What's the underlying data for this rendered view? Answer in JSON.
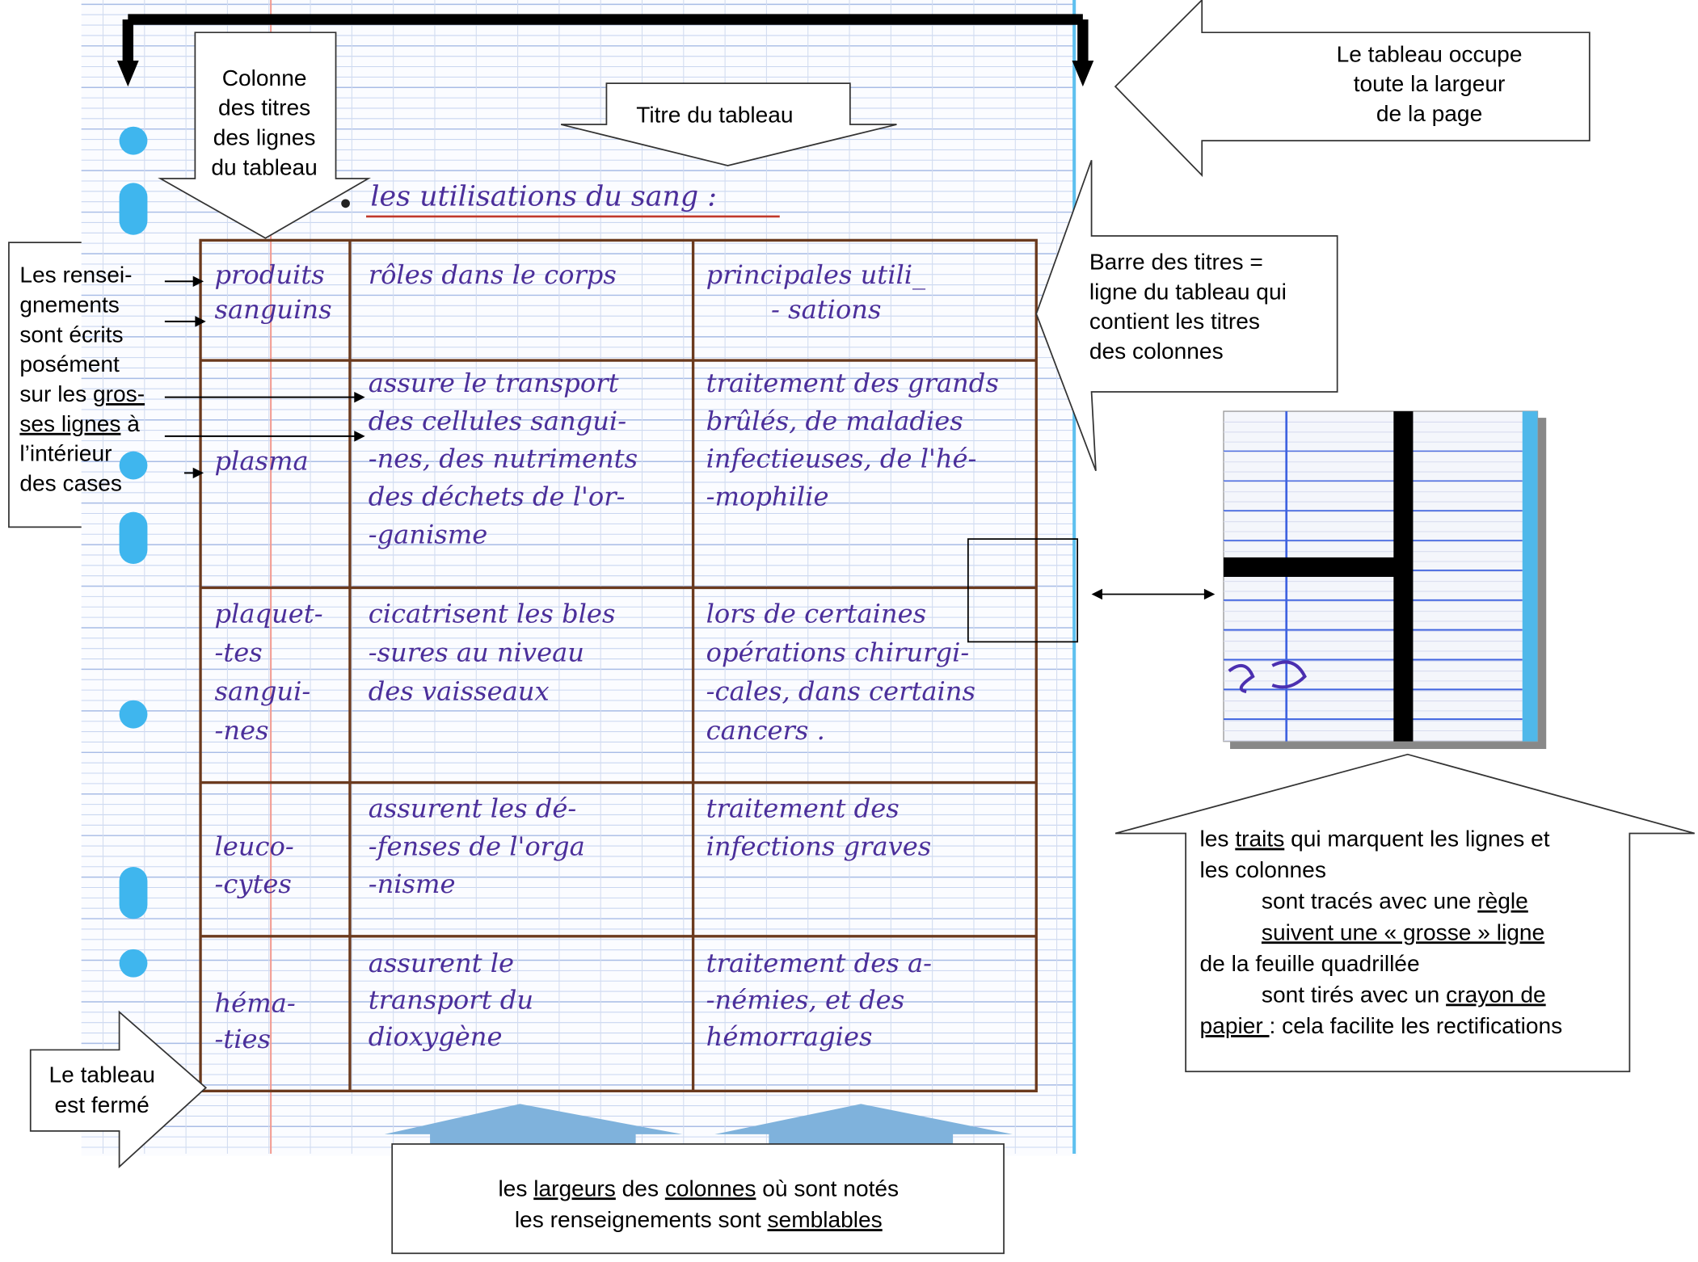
{
  "table": {
    "title": "les utilisations du sang :",
    "header": [
      [
        "produits",
        "sanguins"
      ],
      [
        "rôles dans le corps"
      ],
      [
        "principales utili_",
        "- sations"
      ]
    ],
    "rows": [
      [
        [
          "plasma"
        ],
        [
          "assure le transport",
          "des cellules sangui-",
          "-nes, des nutriments",
          "des déchets de l'or-",
          "-ganisme"
        ],
        [
          "traitement des grands",
          "brûlés, de maladies",
          "infectieuses, de l'hé-",
          "-mophilie"
        ]
      ],
      [
        [
          "plaquet-",
          "-tes",
          "sangui-",
          "-nes"
        ],
        [
          "cicatrisent les bles",
          "-sures au niveau",
          "des vaisseaux"
        ],
        [
          "lors de certaines",
          "opérations chirurgi-",
          "-cales, dans certains",
          "cancers ."
        ]
      ],
      [
        [
          "leuco-",
          "-cytes"
        ],
        [
          "assurent les dé-",
          "-fenses de l'orga",
          "-nisme"
        ],
        [
          "traitement des",
          "infections graves"
        ]
      ],
      [
        [
          "héma-",
          "-ties"
        ],
        [
          "assurent le",
          "transport du",
          "dioxygène"
        ],
        [
          "traitement des a-",
          "-némies, et des",
          "hémorragies"
        ]
      ]
    ]
  },
  "annotations": {
    "row_titles_column": [
      "Colonne",
      "des titres",
      "des lignes",
      "du tableau"
    ],
    "table_title": "Titre du tableau",
    "full_width": [
      "Le tableau occupe",
      "toute la largeur",
      "de la page"
    ],
    "header_bar": [
      "Barre des titres =",
      "ligne du tableau qui",
      "contient les titres",
      "des colonnes"
    ],
    "writing": [
      [
        "Les rensei-"
      ],
      [
        "gnements"
      ],
      [
        "sont écrits"
      ],
      [
        "posément"
      ],
      [
        "sur les ",
        {
          "u": "gros-"
        }
      ],
      [
        {
          "u": "ses lignes"
        },
        " à"
      ],
      [
        "l’intérieur"
      ],
      [
        "des cases"
      ]
    ],
    "lines": [
      [
        "les ",
        {
          "u": "traits"
        },
        " qui marquent les lignes et"
      ],
      [
        "les colonnes"
      ],
      [
        "sont tracés avec une ",
        {
          "u": "règle"
        }
      ],
      [
        {
          "u": "suivent une « grosse » ligne"
        }
      ],
      [
        "de la feuille quadrillée"
      ],
      [
        "sont tirés avec un ",
        {
          "u": "crayon de"
        }
      ],
      [
        {
          "u": "papier "
        },
        ": cela facilite les rectifications"
      ]
    ],
    "closed": [
      "Le tableau",
      "est fermé"
    ],
    "widths": [
      [
        "les ",
        {
          "u": "largeurs"
        },
        " des ",
        {
          "u": "colonnes"
        },
        " où sont notés"
      ],
      [
        "les renseignements sont ",
        {
          "u": "semblables"
        }
      ]
    ]
  }
}
